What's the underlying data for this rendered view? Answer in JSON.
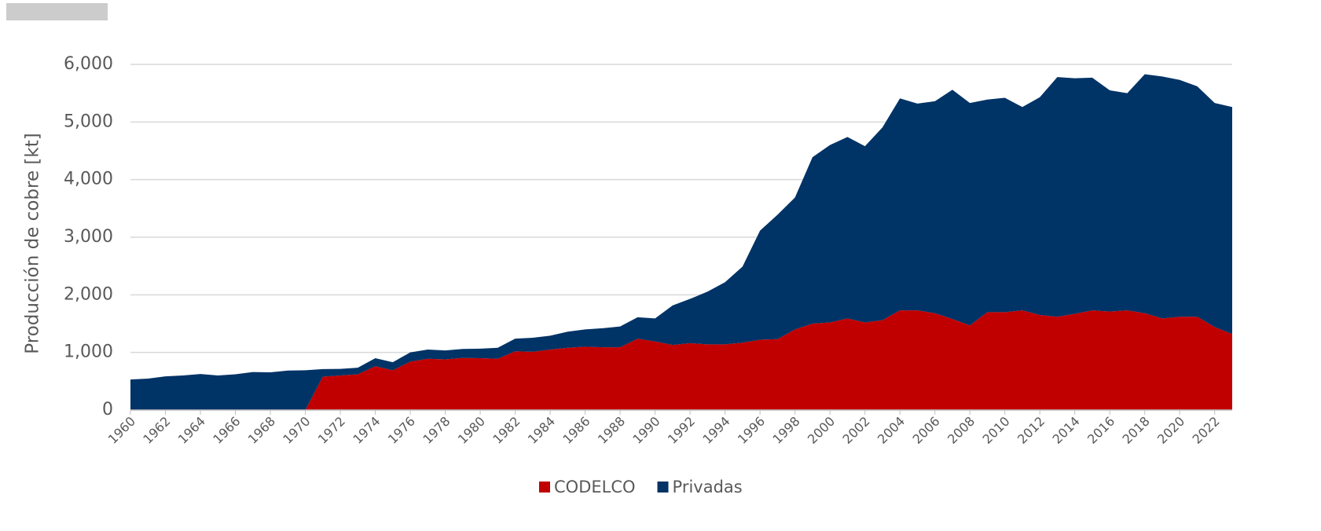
{
  "chart_data": {
    "type": "stacked_area",
    "y_label": "Producción de cobre [kt]",
    "x": [
      1960,
      1961,
      1962,
      1963,
      1964,
      1965,
      1966,
      1967,
      1968,
      1969,
      1970,
      1971,
      1972,
      1973,
      1974,
      1975,
      1976,
      1977,
      1978,
      1979,
      1980,
      1981,
      1982,
      1983,
      1984,
      1985,
      1986,
      1987,
      1988,
      1989,
      1990,
      1991,
      1992,
      1993,
      1994,
      1995,
      1996,
      1997,
      1998,
      1999,
      2000,
      2001,
      2002,
      2003,
      2004,
      2005,
      2006,
      2007,
      2008,
      2009,
      2010,
      2011,
      2012,
      2013,
      2014,
      2015,
      2016,
      2017,
      2018,
      2019,
      2020,
      2021,
      2022,
      2023
    ],
    "xlim": [
      1960,
      2023
    ],
    "xticks": [
      1960,
      1962,
      1964,
      1966,
      1968,
      1970,
      1972,
      1974,
      1976,
      1978,
      1980,
      1982,
      1984,
      1986,
      1988,
      1990,
      1992,
      1994,
      1996,
      1998,
      2000,
      2002,
      2004,
      2006,
      2008,
      2010,
      2012,
      2014,
      2016,
      2018,
      2020,
      2022
    ],
    "ylim": [
      0,
      6000
    ],
    "yticks": [
      0,
      {
        "value": 1000,
        "label": "1,000"
      },
      {
        "value": 2000,
        "label": "2,000"
      },
      {
        "value": 3000,
        "label": "3,000"
      },
      {
        "value": 4000,
        "label": "4,000"
      },
      {
        "value": 5000,
        "label": "5,000"
      },
      {
        "value": 6000,
        "label": "6,000"
      }
    ],
    "grid": true,
    "legend": "bottom",
    "series": [
      {
        "name": "CODELCO",
        "color": "#c00000",
        "values": [
          0,
          0,
          0,
          0,
          0,
          0,
          0,
          0,
          0,
          0,
          0,
          580,
          600,
          620,
          760,
          690,
          840,
          890,
          880,
          905,
          900,
          890,
          1020,
          1010,
          1050,
          1080,
          1100,
          1090,
          1090,
          1240,
          1190,
          1130,
          1160,
          1140,
          1140,
          1170,
          1220,
          1230,
          1400,
          1500,
          1520,
          1590,
          1520,
          1560,
          1730,
          1730,
          1680,
          1580,
          1470,
          1700,
          1700,
          1730,
          1650,
          1620,
          1670,
          1730,
          1710,
          1730,
          1680,
          1590,
          1620,
          1620,
          1440,
          1320
        ]
      },
      {
        "name": "Privadas",
        "color": "#003366",
        "values": [
          530,
          545,
          585,
          600,
          625,
          600,
          620,
          660,
          655,
          685,
          690,
          130,
          115,
          115,
          140,
          140,
          160,
          160,
          155,
          155,
          165,
          190,
          220,
          245,
          240,
          280,
          300,
          330,
          360,
          370,
          400,
          685,
          770,
          915,
          1080,
          1320,
          1895,
          2160,
          2290,
          2890,
          3080,
          3150,
          3060,
          3345,
          3680,
          3590,
          3680,
          3980,
          3860,
          3690,
          3720,
          3530,
          3780,
          4160,
          4090,
          4040,
          3840,
          3770,
          4150,
          4200,
          4110,
          4000,
          3890,
          3940
        ]
      }
    ]
  }
}
